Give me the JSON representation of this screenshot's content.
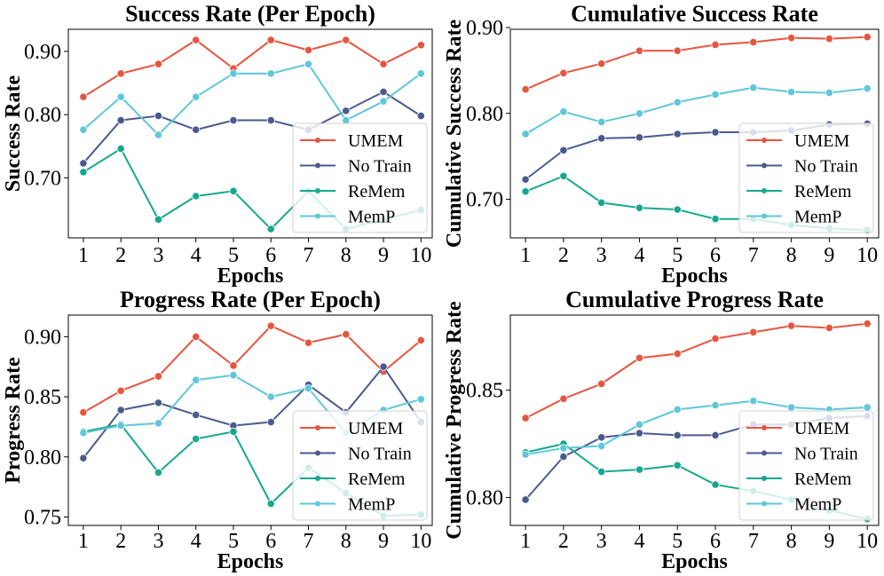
{
  "colors": {
    "UMEM": "#e6553f",
    "No Train": "#4a5a8f",
    "ReMem": "#16a88e",
    "MemP": "#5ec7da"
  },
  "chart_data": [
    {
      "type": "line",
      "title": "Success Rate (Per Epoch)",
      "xlabel": "Epochs",
      "ylabel": "Success Rate",
      "x": [
        1,
        2,
        3,
        4,
        5,
        6,
        7,
        8,
        9,
        10
      ],
      "xlim": [
        0.6,
        10.3
      ],
      "ylim": [
        0.605,
        0.935
      ],
      "yticks": [
        0.7,
        0.8,
        0.9
      ],
      "ytick_labels": [
        "0.70",
        "0.80",
        "0.90"
      ],
      "legend": "lower right",
      "series": [
        {
          "name": "UMEM",
          "values": [
            0.828,
            0.865,
            0.88,
            0.918,
            0.873,
            0.918,
            0.902,
            0.918,
            0.88,
            0.91
          ]
        },
        {
          "name": "No Train",
          "values": [
            0.723,
            0.791,
            0.798,
            0.776,
            0.791,
            0.791,
            0.776,
            0.806,
            0.836,
            0.798
          ]
        },
        {
          "name": "ReMem",
          "values": [
            0.709,
            0.746,
            0.634,
            0.671,
            0.679,
            0.619,
            0.679,
            0.619,
            0.634,
            0.649
          ]
        },
        {
          "name": "MemP",
          "values": [
            0.776,
            0.828,
            0.768,
            0.828,
            0.865,
            0.865,
            0.88,
            0.791,
            0.821,
            0.865
          ]
        }
      ]
    },
    {
      "type": "line",
      "title": "Cumulative Success Rate",
      "xlabel": "Epochs",
      "ylabel": "Cumulative Success Rate",
      "x": [
        1,
        2,
        3,
        4,
        5,
        6,
        7,
        8,
        9,
        10
      ],
      "xlim": [
        0.6,
        10.3
      ],
      "ylim": [
        0.655,
        0.898
      ],
      "yticks": [
        0.7,
        0.8,
        0.9
      ],
      "ytick_labels": [
        "0.70",
        "0.80",
        "0.90"
      ],
      "legend": "lower right",
      "series": [
        {
          "name": "UMEM",
          "values": [
            0.828,
            0.847,
            0.858,
            0.873,
            0.873,
            0.88,
            0.883,
            0.888,
            0.887,
            0.889
          ]
        },
        {
          "name": "No Train",
          "values": [
            0.723,
            0.757,
            0.771,
            0.772,
            0.776,
            0.778,
            0.778,
            0.78,
            0.787,
            0.788
          ]
        },
        {
          "name": "ReMem",
          "values": [
            0.709,
            0.727,
            0.696,
            0.69,
            0.688,
            0.677,
            0.677,
            0.67,
            0.666,
            0.664
          ]
        },
        {
          "name": "MemP",
          "values": [
            0.776,
            0.802,
            0.79,
            0.8,
            0.813,
            0.822,
            0.83,
            0.825,
            0.824,
            0.829
          ]
        }
      ]
    },
    {
      "type": "line",
      "title": "Progress Rate (Per Epoch)",
      "xlabel": "Epochs",
      "ylabel": "Progress Rate",
      "x": [
        1,
        2,
        3,
        4,
        5,
        6,
        7,
        8,
        9,
        10
      ],
      "xlim": [
        0.6,
        10.3
      ],
      "ylim": [
        0.743,
        0.918
      ],
      "yticks": [
        0.75,
        0.8,
        0.85,
        0.9
      ],
      "ytick_labels": [
        "0.75",
        "0.80",
        "0.85",
        "0.90"
      ],
      "legend": "lower right",
      "series": [
        {
          "name": "UMEM",
          "values": [
            0.837,
            0.855,
            0.867,
            0.9,
            0.876,
            0.909,
            0.895,
            0.902,
            0.871,
            0.897
          ]
        },
        {
          "name": "No Train",
          "values": [
            0.799,
            0.839,
            0.845,
            0.835,
            0.826,
            0.829,
            0.86,
            0.837,
            0.875,
            0.829
          ]
        },
        {
          "name": "ReMem",
          "values": [
            0.821,
            0.827,
            0.787,
            0.815,
            0.821,
            0.761,
            0.791,
            0.77,
            0.751,
            0.752
          ]
        },
        {
          "name": "MemP",
          "values": [
            0.82,
            0.826,
            0.828,
            0.864,
            0.868,
            0.85,
            0.857,
            0.82,
            0.839,
            0.848
          ]
        }
      ]
    },
    {
      "type": "line",
      "title": "Cumulative Progress Rate",
      "xlabel": "Epochs",
      "ylabel": "Cumulative Progress Rate",
      "x": [
        1,
        2,
        3,
        4,
        5,
        6,
        7,
        8,
        9,
        10
      ],
      "xlim": [
        0.6,
        10.3
      ],
      "ylim": [
        0.787,
        0.885
      ],
      "yticks": [
        0.8,
        0.85
      ],
      "ytick_labels": [
        "0.80",
        "0.85"
      ],
      "legend": "lower right",
      "series": [
        {
          "name": "UMEM",
          "values": [
            0.837,
            0.846,
            0.853,
            0.865,
            0.867,
            0.874,
            0.877,
            0.88,
            0.879,
            0.881
          ]
        },
        {
          "name": "No Train",
          "values": [
            0.799,
            0.819,
            0.828,
            0.83,
            0.829,
            0.829,
            0.834,
            0.834,
            0.837,
            0.838
          ]
        },
        {
          "name": "ReMem",
          "values": [
            0.821,
            0.825,
            0.812,
            0.813,
            0.815,
            0.806,
            0.803,
            0.799,
            0.794,
            0.79
          ]
        },
        {
          "name": "MemP",
          "values": [
            0.82,
            0.823,
            0.824,
            0.834,
            0.841,
            0.843,
            0.845,
            0.842,
            0.841,
            0.842
          ]
        }
      ]
    }
  ]
}
